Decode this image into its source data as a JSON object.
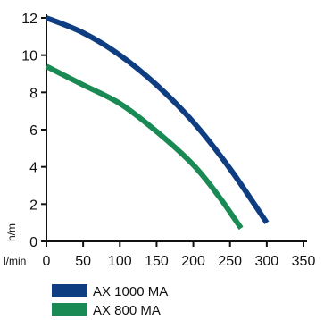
{
  "chart_data": {
    "type": "line",
    "xlabel": "l/min",
    "ylabel": "h/m",
    "xlim": [
      0,
      350
    ],
    "ylim": [
      0,
      12
    ],
    "xticks": [
      0,
      50,
      100,
      150,
      200,
      250,
      300,
      350
    ],
    "yticks": [
      0,
      2,
      4,
      6,
      8,
      10,
      12
    ],
    "grid": false,
    "legend_position": "bottom-left",
    "series": [
      {
        "name": "AX 1000 MA",
        "color": "#0f3d82",
        "points": [
          [
            0,
            12.0
          ],
          [
            50,
            11.2
          ],
          [
            100,
            10.0
          ],
          [
            150,
            8.4
          ],
          [
            200,
            6.4
          ],
          [
            250,
            3.9
          ],
          [
            300,
            1.0
          ]
        ]
      },
      {
        "name": "AX 800 MA",
        "color": "#1a8a55",
        "points": [
          [
            0,
            9.4
          ],
          [
            50,
            8.4
          ],
          [
            100,
            7.4
          ],
          [
            150,
            5.9
          ],
          [
            200,
            4.1
          ],
          [
            235,
            2.4
          ],
          [
            265,
            0.7
          ]
        ]
      }
    ]
  }
}
